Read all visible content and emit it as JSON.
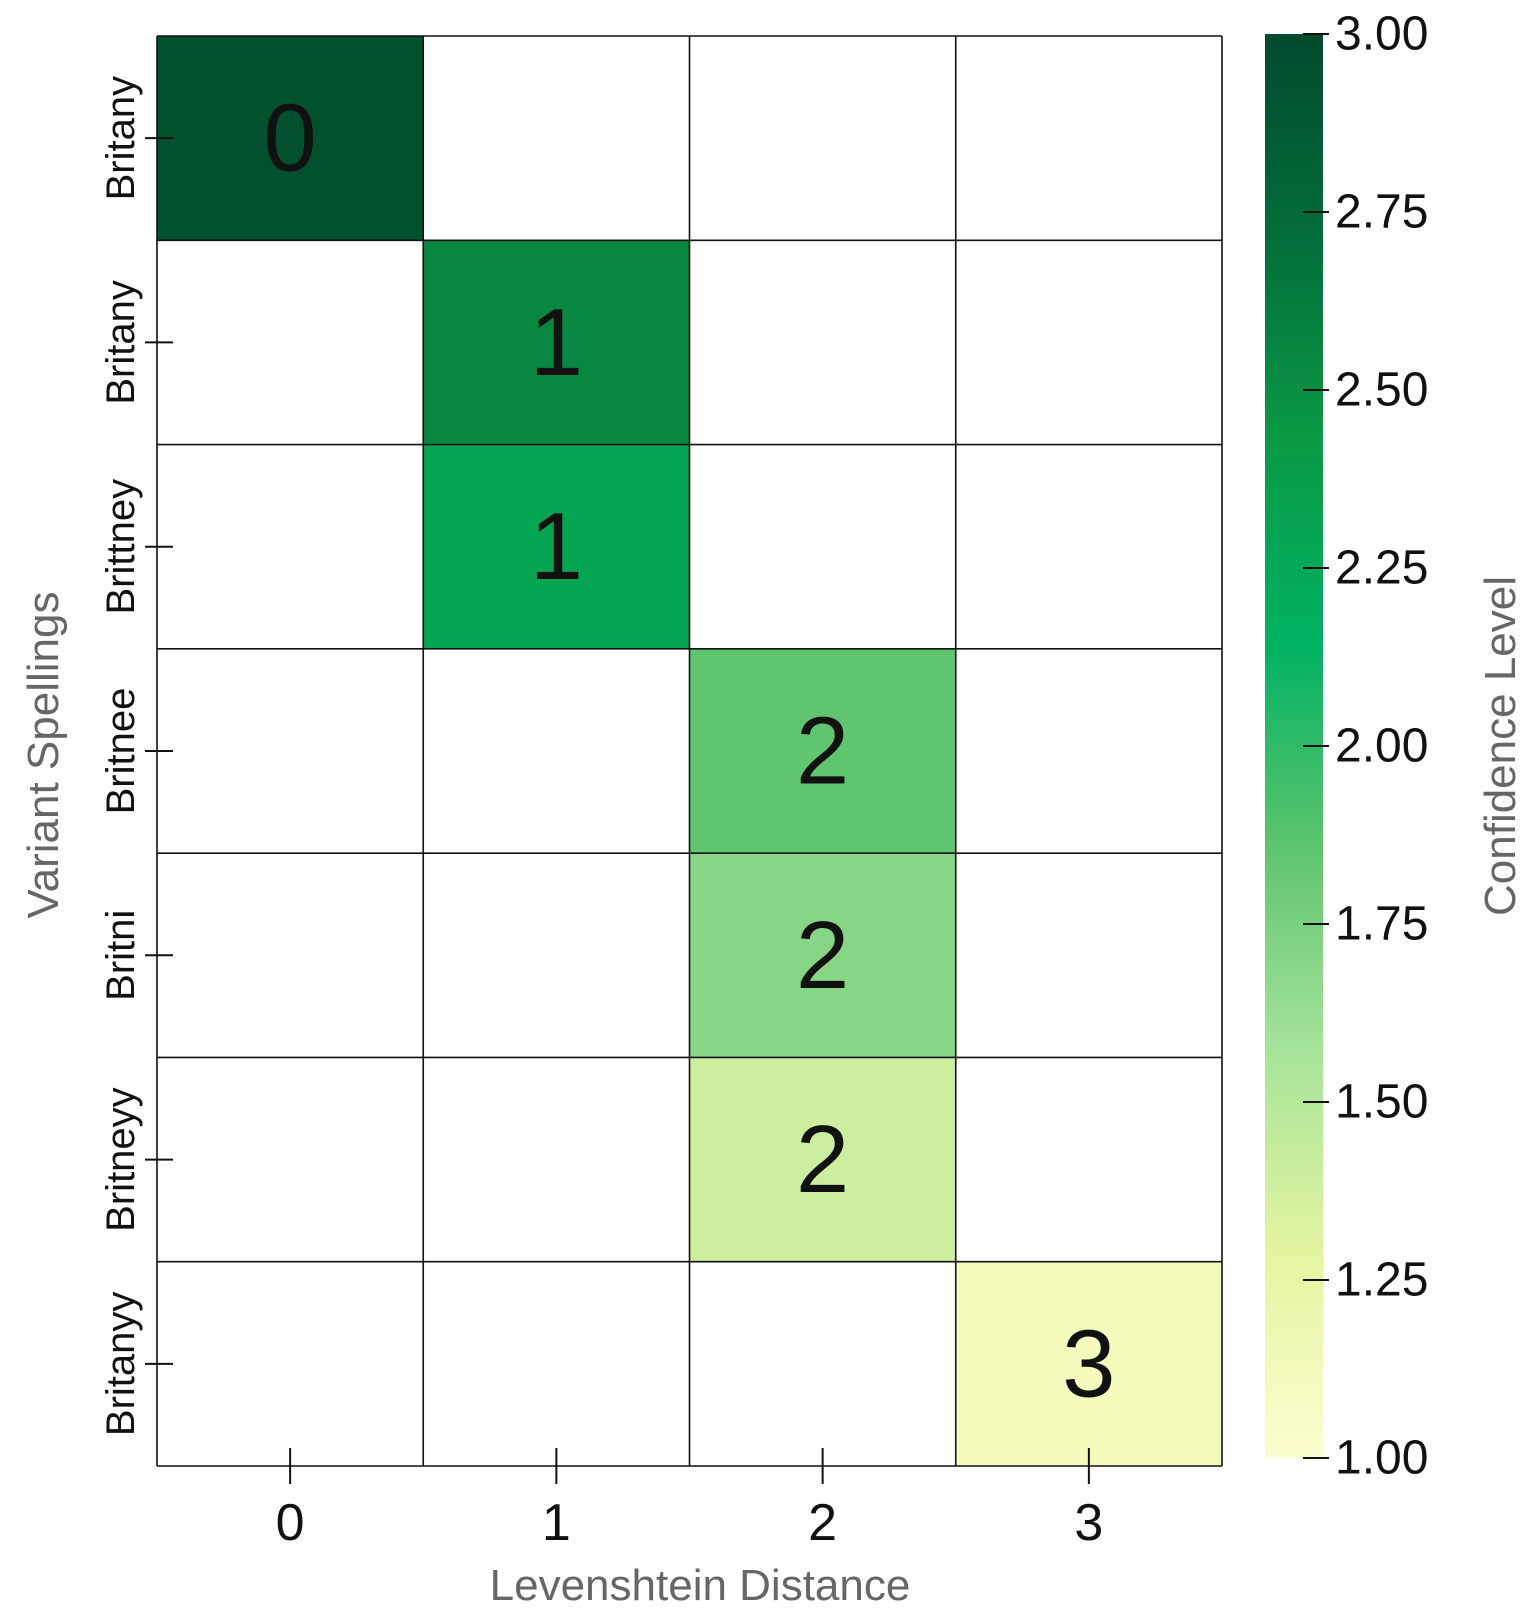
{
  "chart_data": {
    "type": "heatmap",
    "title": "",
    "xlabel": "Levenshtein Distance",
    "ylabel": "Variant Spellings",
    "x_categories": [
      "0",
      "1",
      "2",
      "3"
    ],
    "y_categories": [
      "Britany",
      "Britany",
      "Brittney",
      "Britnee",
      "Britni",
      "Britneyy",
      "Britanyy"
    ],
    "cells": [
      {
        "row": 0,
        "col": 0,
        "label": "0",
        "value": 2.95
      },
      {
        "row": 1,
        "col": 1,
        "label": "1",
        "value": 2.55
      },
      {
        "row": 2,
        "col": 1,
        "label": "1",
        "value": 2.3
      },
      {
        "row": 3,
        "col": 2,
        "label": "2",
        "value": 1.85
      },
      {
        "row": 4,
        "col": 2,
        "label": "2",
        "value": 1.7
      },
      {
        "row": 5,
        "col": 2,
        "label": "2",
        "value": 1.4
      },
      {
        "row": 6,
        "col": 3,
        "label": "3",
        "value": 1.12
      }
    ],
    "colorbar": {
      "label": "Confidence Level",
      "range": [
        1.0,
        3.0
      ],
      "ticks": [
        "1.00",
        "1.25",
        "1.50",
        "1.75",
        "2.00",
        "2.25",
        "2.50",
        "2.75",
        "3.00"
      ],
      "colors": [
        "#fdfdd0",
        "#e4f5a0",
        "#a7e49a",
        "#5ec46e",
        "#00b262",
        "#0a9a45",
        "#036e3a",
        "#014a2c"
      ]
    },
    "grid": true,
    "legend": "right"
  }
}
